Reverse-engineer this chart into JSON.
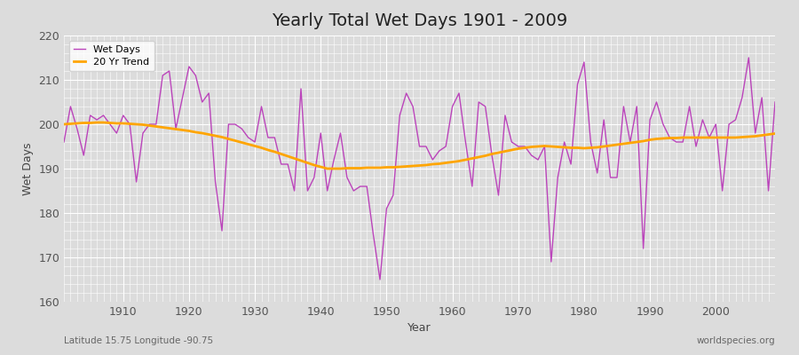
{
  "title": "Yearly Total Wet Days 1901 - 2009",
  "xlabel": "Year",
  "ylabel": "Wet Days",
  "footnote_left": "Latitude 15.75 Longitude -90.75",
  "footnote_right": "worldspecies.org",
  "line_color": "#bb44bb",
  "trend_color": "#ffa500",
  "background_color": "#dcdcdc",
  "plot_bg_color": "#dcdcdc",
  "ylim": [
    160,
    220
  ],
  "xlim": [
    1901,
    2009
  ],
  "yticks": [
    160,
    170,
    180,
    190,
    200,
    210,
    220
  ],
  "xticks": [
    1910,
    1920,
    1930,
    1940,
    1950,
    1960,
    1970,
    1980,
    1990,
    2000
  ],
  "legend_labels": [
    "Wet Days",
    "20 Yr Trend"
  ],
  "years": [
    1901,
    1902,
    1903,
    1904,
    1905,
    1906,
    1907,
    1908,
    1909,
    1910,
    1911,
    1912,
    1913,
    1914,
    1915,
    1916,
    1917,
    1918,
    1919,
    1920,
    1921,
    1922,
    1923,
    1924,
    1925,
    1926,
    1927,
    1928,
    1929,
    1930,
    1931,
    1932,
    1933,
    1934,
    1935,
    1936,
    1937,
    1938,
    1939,
    1940,
    1941,
    1942,
    1943,
    1944,
    1945,
    1946,
    1947,
    1948,
    1949,
    1950,
    1951,
    1952,
    1953,
    1954,
    1955,
    1956,
    1957,
    1958,
    1959,
    1960,
    1961,
    1962,
    1963,
    1964,
    1965,
    1966,
    1967,
    1968,
    1969,
    1970,
    1971,
    1972,
    1973,
    1974,
    1975,
    1976,
    1977,
    1978,
    1979,
    1980,
    1981,
    1982,
    1983,
    1984,
    1985,
    1986,
    1987,
    1988,
    1989,
    1990,
    1991,
    1992,
    1993,
    1994,
    1995,
    1996,
    1997,
    1998,
    1999,
    2000,
    2001,
    2002,
    2003,
    2004,
    2005,
    2006,
    2007,
    2008,
    2009
  ],
  "wet_days": [
    196,
    204,
    199,
    193,
    202,
    201,
    202,
    200,
    198,
    202,
    200,
    187,
    198,
    200,
    200,
    211,
    212,
    199,
    206,
    213,
    211,
    205,
    207,
    187,
    176,
    200,
    200,
    199,
    197,
    196,
    204,
    197,
    197,
    191,
    191,
    185,
    208,
    185,
    188,
    198,
    185,
    192,
    198,
    188,
    185,
    186,
    186,
    175,
    165,
    181,
    184,
    202,
    207,
    204,
    195,
    195,
    192,
    194,
    195,
    204,
    207,
    196,
    186,
    205,
    204,
    193,
    184,
    202,
    196,
    195,
    195,
    193,
    192,
    195,
    169,
    188,
    196,
    191,
    209,
    214,
    196,
    189,
    201,
    188,
    188,
    204,
    196,
    204,
    172,
    201,
    205,
    200,
    197,
    196,
    196,
    204,
    195,
    201,
    197,
    200,
    185,
    200,
    201,
    206,
    215,
    198,
    206,
    185,
    205
  ],
  "trend": [
    200.0,
    200.1,
    200.2,
    200.3,
    200.3,
    200.4,
    200.4,
    200.3,
    200.2,
    200.2,
    200.1,
    200.0,
    199.9,
    199.7,
    199.5,
    199.3,
    199.1,
    198.9,
    198.7,
    198.5,
    198.2,
    198.0,
    197.7,
    197.4,
    197.1,
    196.7,
    196.3,
    195.9,
    195.5,
    195.1,
    194.7,
    194.2,
    193.8,
    193.3,
    192.8,
    192.3,
    191.8,
    191.3,
    190.8,
    190.4,
    190.0,
    190.0,
    190.0,
    190.1,
    190.1,
    190.1,
    190.2,
    190.2,
    190.2,
    190.3,
    190.3,
    190.4,
    190.5,
    190.6,
    190.7,
    190.8,
    191.0,
    191.1,
    191.3,
    191.5,
    191.7,
    192.0,
    192.3,
    192.6,
    192.9,
    193.3,
    193.6,
    193.9,
    194.2,
    194.5,
    194.7,
    194.9,
    195.0,
    195.1,
    195.0,
    194.9,
    194.8,
    194.7,
    194.7,
    194.6,
    194.7,
    194.8,
    195.0,
    195.2,
    195.4,
    195.6,
    195.8,
    196.0,
    196.2,
    196.5,
    196.7,
    196.8,
    196.9,
    196.9,
    197.0,
    197.0,
    197.0,
    197.0,
    197.0,
    197.0,
    197.0,
    197.0,
    197.0,
    197.1,
    197.2,
    197.3,
    197.5,
    197.7,
    197.9
  ]
}
